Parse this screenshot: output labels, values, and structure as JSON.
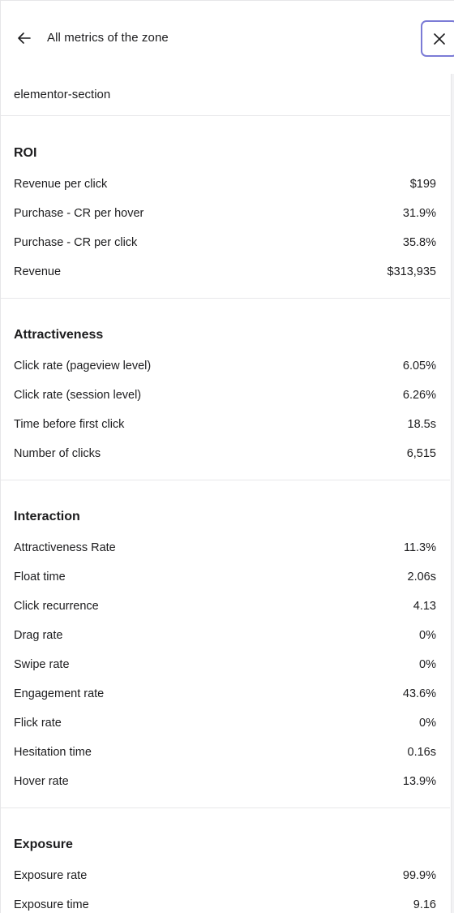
{
  "header": {
    "title": "All metrics of the zone",
    "back_icon": "arrow-left-icon",
    "close_icon": "close-icon"
  },
  "zone": {
    "name": "elementor-section"
  },
  "sections": [
    {
      "title": "ROI",
      "metrics": [
        {
          "label": "Revenue per click",
          "value": "$199"
        },
        {
          "label": "Purchase - CR per hover",
          "value": "31.9%"
        },
        {
          "label": "Purchase - CR per click",
          "value": "35.8%"
        },
        {
          "label": "Revenue",
          "value": "$313,935"
        }
      ]
    },
    {
      "title": "Attractiveness",
      "metrics": [
        {
          "label": "Click rate (pageview level)",
          "value": "6.05%"
        },
        {
          "label": "Click rate (session level)",
          "value": "6.26%"
        },
        {
          "label": "Time before first click",
          "value": "18.5s"
        },
        {
          "label": "Number of clicks",
          "value": "6,515"
        }
      ]
    },
    {
      "title": "Interaction",
      "metrics": [
        {
          "label": "Attractiveness Rate",
          "value": "11.3%"
        },
        {
          "label": "Float time",
          "value": "2.06s"
        },
        {
          "label": "Click recurrence",
          "value": "4.13"
        },
        {
          "label": "Drag rate",
          "value": "0%"
        },
        {
          "label": "Swipe rate",
          "value": "0%"
        },
        {
          "label": "Engagement rate",
          "value": "43.6%"
        },
        {
          "label": "Flick rate",
          "value": "0%"
        },
        {
          "label": "Hesitation time",
          "value": "0.16s"
        },
        {
          "label": "Hover rate",
          "value": "13.9%"
        }
      ]
    },
    {
      "title": "Exposure",
      "metrics": [
        {
          "label": "Exposure rate",
          "value": "99.9%"
        },
        {
          "label": "Exposure time",
          "value": "9.16"
        }
      ]
    }
  ]
}
